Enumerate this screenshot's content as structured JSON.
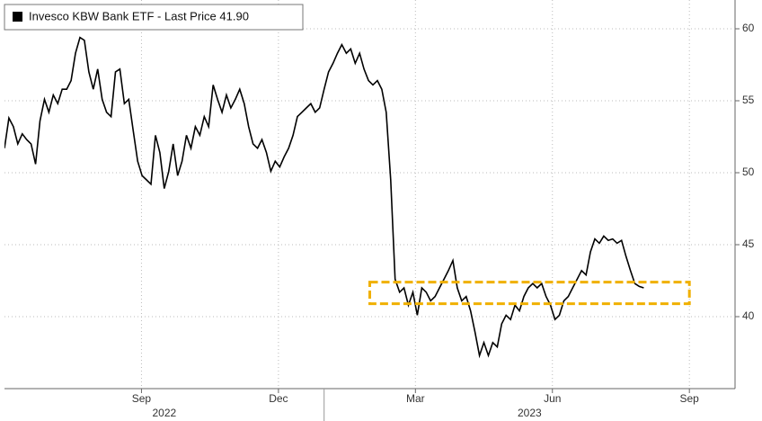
{
  "chart_data": {
    "type": "line",
    "series": [
      {
        "name": "Invesco KBW Bank ETF - Last Price 41.90",
        "color": "#000000",
        "start": "2022-06",
        "end": "2023-08",
        "values": [
          51.7,
          53.8,
          53.2,
          52,
          52.7,
          52.3,
          52,
          50.6,
          53.6,
          55.1,
          54.2,
          55.4,
          54.8,
          55.8,
          55.8,
          56.4,
          58.3,
          59.4,
          59.2,
          57,
          55.8,
          57.2,
          55.1,
          54.2,
          53.9,
          57,
          57.2,
          54.8,
          55.1,
          52.9,
          50.8,
          49.8,
          49.5,
          49.2,
          52.6,
          51.4,
          48.9,
          50.1,
          52,
          49.8,
          50.8,
          52.6,
          51.7,
          53.2,
          52.6,
          53.9,
          53.2,
          56.1,
          55.1,
          54.2,
          55.4,
          54.5,
          55.1,
          55.8,
          54.8,
          53.2,
          52,
          51.7,
          52.3,
          51.4,
          50.1,
          50.8,
          50.4,
          51.1,
          51.7,
          52.6,
          53.9,
          54.2,
          54.5,
          54.8,
          54.2,
          54.5,
          55.8,
          57,
          57.6,
          58.3,
          58.9,
          58.3,
          58.6,
          57.6,
          58.3,
          57.2,
          56.4,
          56.1,
          56.4,
          55.8,
          54.2,
          49.5,
          42.6,
          41.7,
          42,
          40.8,
          41.7,
          40.1,
          42,
          41.7,
          41.1,
          41.4,
          42,
          42.6,
          43.2,
          43.9,
          42,
          41.1,
          41.4,
          40.4,
          38.9,
          37.3,
          38.2,
          37.3,
          38.2,
          37.9,
          39.5,
          40.1,
          39.8,
          40.8,
          40.4,
          41.4,
          42,
          42.3,
          42,
          42.3,
          41.4,
          40.8,
          39.8,
          40.1,
          41.1,
          41.4,
          42,
          42.6,
          43.2,
          42.9,
          44.5,
          45.4,
          45.1,
          45.6,
          45.3,
          45.4,
          45.1,
          45.3,
          44.2,
          43.2,
          42.3,
          42.1,
          42
        ]
      }
    ],
    "xlim": [
      "2022-06",
      "2023-10"
    ],
    "xticks": [
      {
        "value": "2022-09",
        "label": "Sep"
      },
      {
        "value": "2022-12",
        "label": "Dec"
      },
      {
        "value": "2023-03",
        "label": "Mar"
      },
      {
        "value": "2023-06",
        "label": "Jun"
      },
      {
        "value": "2023-09",
        "label": "Sep"
      }
    ],
    "years": [
      "2022",
      "2023"
    ],
    "ylim": [
      35,
      62
    ],
    "yticks": [
      40,
      45,
      50,
      55,
      60
    ],
    "grid": true,
    "highlight": {
      "x": [
        "2023-02",
        "2023-09"
      ],
      "y": [
        40.9,
        42.4
      ],
      "color": "#f0b000"
    }
  }
}
